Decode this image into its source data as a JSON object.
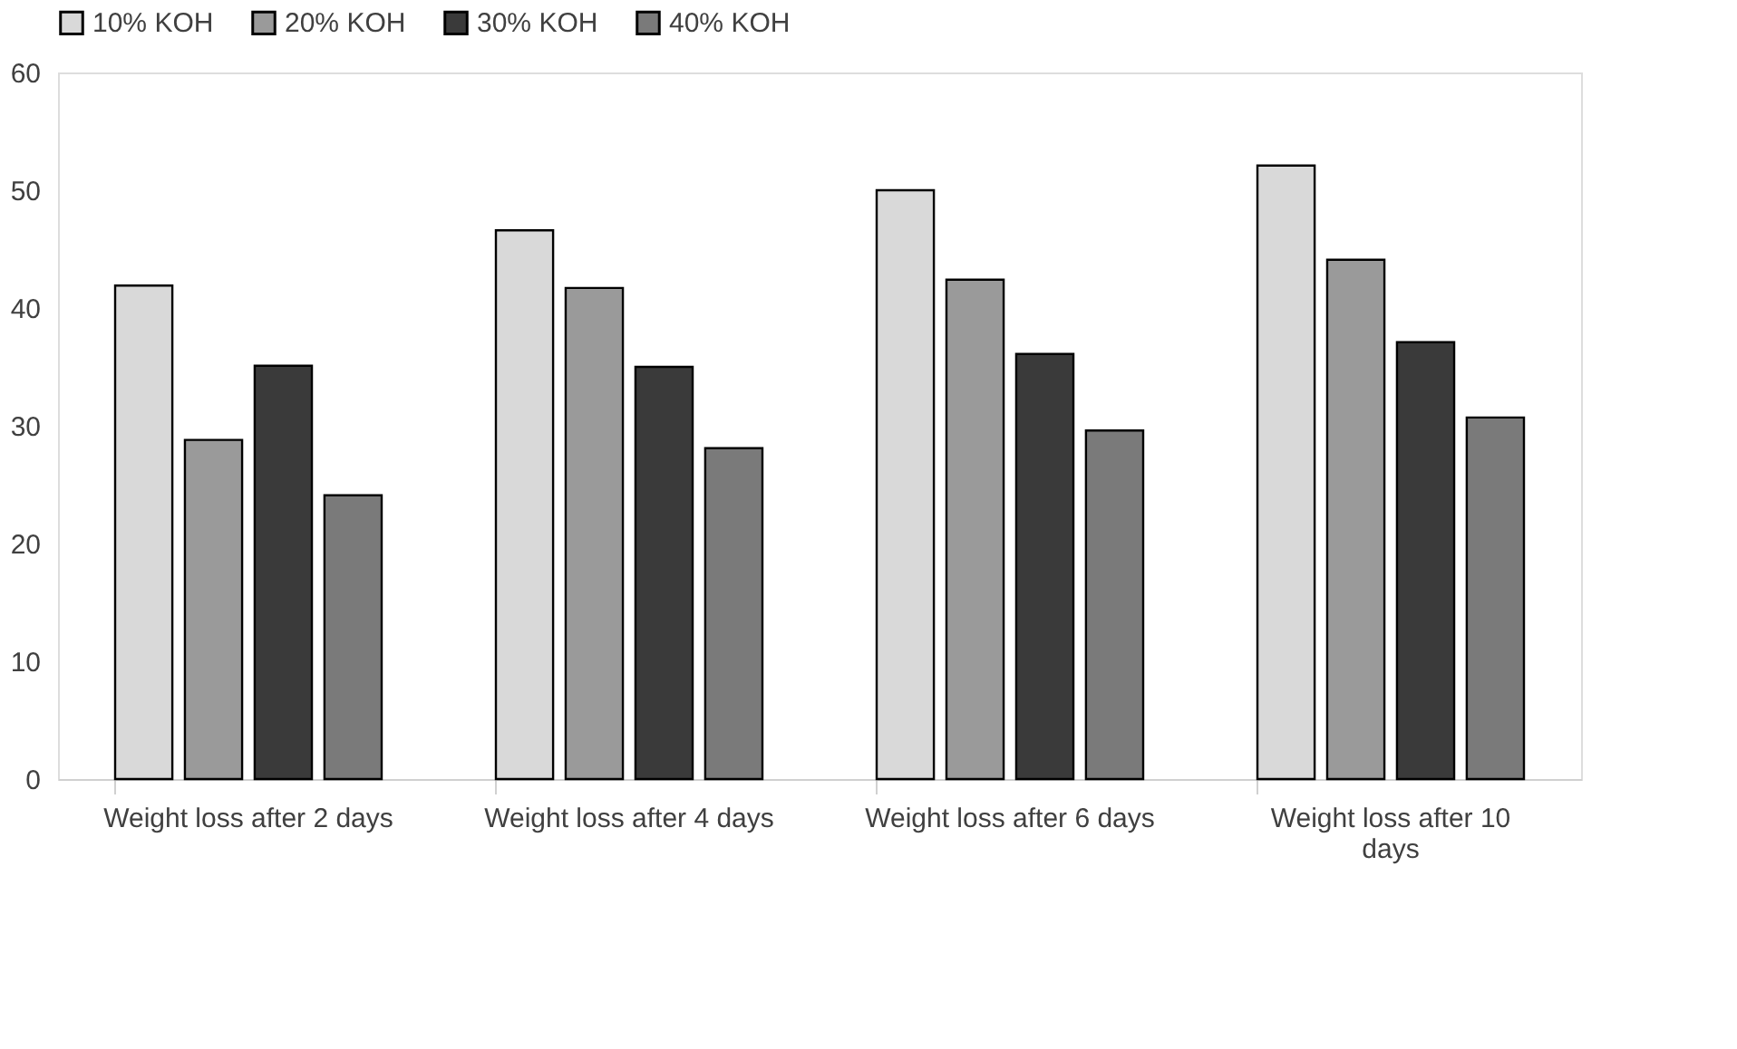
{
  "chart_data": {
    "type": "bar",
    "categories": [
      "Weight loss after 2 days",
      "Weight loss after 4 days",
      "Weight loss after 6 days",
      "Weight loss after 10 days"
    ],
    "series": [
      {
        "name": "10% KOH",
        "color": "#d9d9d9",
        "values": [
          41.9,
          46.6,
          50.0,
          52.1
        ]
      },
      {
        "name": "20% KOH",
        "color": "#9a9a9a",
        "values": [
          28.8,
          41.7,
          42.4,
          44.1
        ]
      },
      {
        "name": "30% KOH",
        "color": "#3a3a3a",
        "values": [
          35.1,
          35.0,
          36.1,
          37.1
        ]
      },
      {
        "name": "40% KOH",
        "color": "#7a7a7a",
        "values": [
          24.1,
          28.1,
          29.6,
          30.7
        ]
      }
    ],
    "ylim": [
      0,
      60
    ],
    "yticks": [
      0,
      10,
      20,
      30,
      40,
      50,
      60
    ],
    "grid": false,
    "legend": "top"
  }
}
